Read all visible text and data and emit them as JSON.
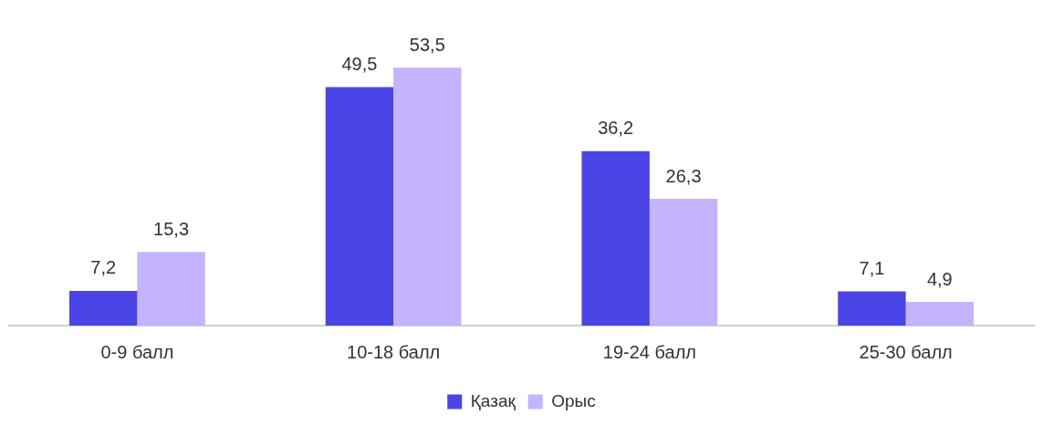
{
  "chart_data": {
    "type": "bar",
    "categories": [
      "0-9 балл",
      "10-18 балл",
      "19-24 балл",
      "25-30 балл"
    ],
    "series": [
      {
        "name": "Қазақ",
        "color": "#4b44e6",
        "values": [
          7.2,
          49.5,
          36.2,
          7.1
        ],
        "value_labels": [
          "7,2",
          "49,5",
          "36,2",
          "7,1"
        ]
      },
      {
        "name": "Орыс",
        "color": "#c5b3fd",
        "values": [
          15.3,
          53.5,
          26.3,
          4.9
        ],
        "value_labels": [
          "15,3",
          "53,5",
          "26,3",
          "4,9"
        ]
      }
    ],
    "legend": "bottom",
    "grid": false,
    "tick_labels": "x"
  }
}
